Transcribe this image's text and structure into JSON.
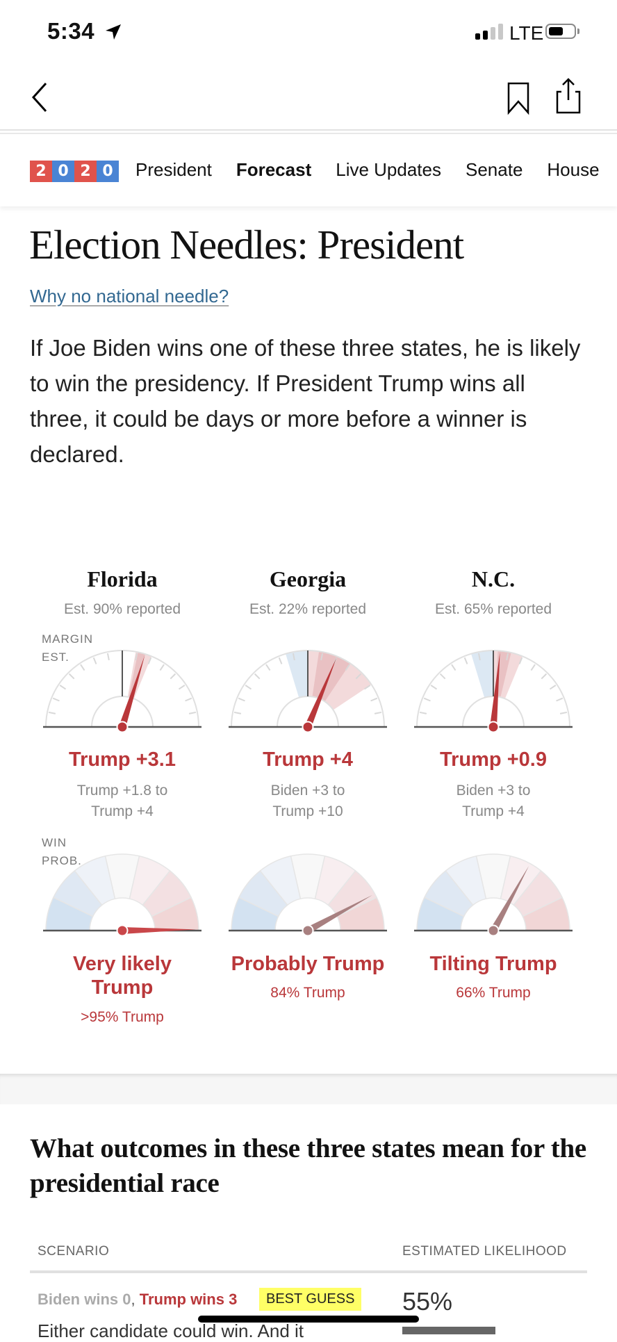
{
  "status_bar": {
    "time": "5:34",
    "network": "LTE",
    "signal_bars_active": 2,
    "signal_bars_total": 4,
    "battery_level": 0.6
  },
  "nav": {
    "back_icon": "chevron-left-icon",
    "bookmark_icon": "bookmark-icon",
    "share_icon": "share-icon"
  },
  "section_nav": {
    "logo_digits": [
      "2",
      "0",
      "2",
      "0"
    ],
    "logo_colors": [
      "#e0534c",
      "#4a84d4",
      "#e0534c",
      "#4a84d4"
    ],
    "items": [
      {
        "label": "President",
        "active": false
      },
      {
        "label": "Forecast",
        "active": true
      },
      {
        "label": "Live Updates",
        "active": false
      },
      {
        "label": "Senate",
        "active": false
      },
      {
        "label": "House",
        "active": false
      }
    ]
  },
  "header": {
    "title": "Election Needles: President",
    "why_link": "Why no national needle?",
    "lede": "If Joe Biden wins one of these three states, he is likely to win the presidency. If President Trump wins all three, it could be days or more before a winner is declared."
  },
  "gauge_labels": {
    "margin": [
      "MARGIN",
      "EST."
    ],
    "win_prob": [
      "WIN",
      "PROB."
    ]
  },
  "colors": {
    "trump_red": "#b9373a",
    "biden_blue": "#4a84d4",
    "needle_prob": "#a88080"
  },
  "states": [
    {
      "name": "Florida",
      "reported": "Est. 90% reported",
      "margin_label": "Trump +3.1",
      "margin_value": 3.1,
      "range_line1": "Trump +1.8 to",
      "range_line2": "Trump +4",
      "range_low": 1.8,
      "range_high": 4,
      "prob_label": "Very likely Trump",
      "prob_text": ">95% Trump",
      "prob_value": 0.995
    },
    {
      "name": "Georgia",
      "reported": "Est. 22% reported",
      "margin_label": "Trump +4",
      "margin_value": 4,
      "range_line1": "Biden +3 to",
      "range_line2": "Trump +10",
      "range_low": -3,
      "range_high": 10,
      "prob_label": "Probably Trump",
      "prob_text": "84% Trump",
      "prob_value": 0.84
    },
    {
      "name": "N.C.",
      "reported": "Est. 65% reported",
      "margin_label": "Trump +0.9",
      "margin_value": 0.9,
      "range_line1": "Biden +3 to",
      "range_line2": "Trump +4",
      "range_low": -3,
      "range_high": 4,
      "prob_label": "Tilting Trump",
      "prob_text": "66% Trump",
      "prob_value": 0.66
    }
  ],
  "outcomes": {
    "title": "What outcomes in these three states mean for the presidential race",
    "col_scenario": "SCENARIO",
    "col_likelihood": "ESTIMATED LIKELIHOOD",
    "rows": [
      {
        "biden": "Biden wins 0",
        "separator": ",",
        "trump": "Trump wins 3",
        "badge": "BEST GUESS",
        "likelihood": "55%",
        "likelihood_value": 55,
        "description": "Either candidate could win. And it"
      }
    ]
  }
}
